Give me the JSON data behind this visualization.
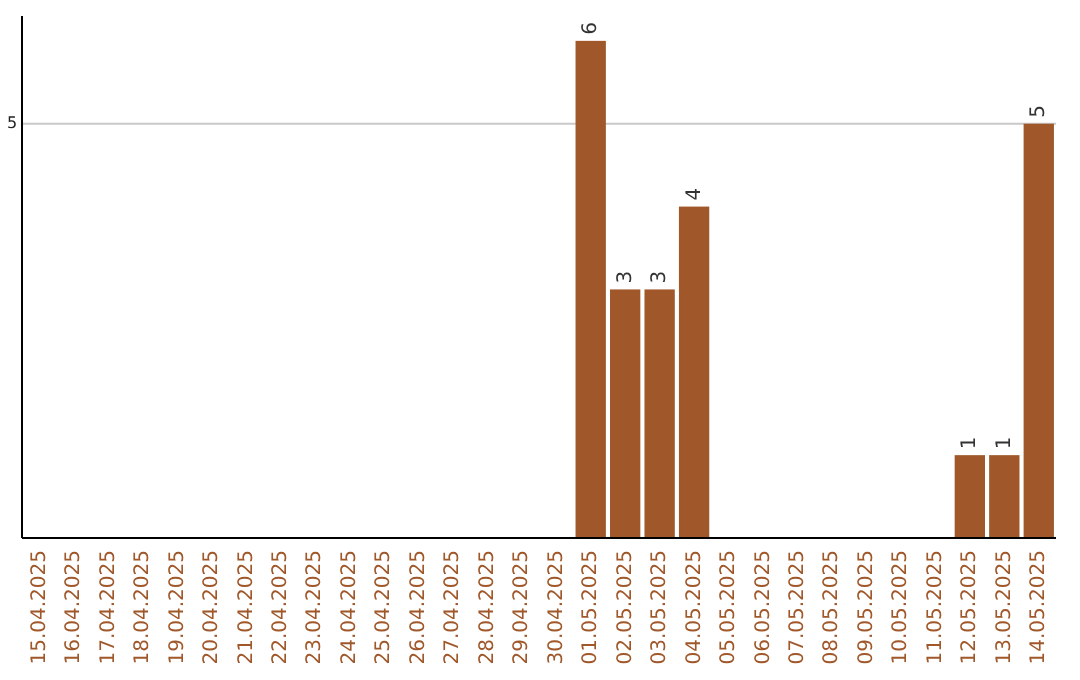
{
  "chart_data": {
    "type": "bar",
    "categories": [
      "15.04.2025",
      "16.04.2025",
      "17.04.2025",
      "18.04.2025",
      "19.04.2025",
      "20.04.2025",
      "21.04.2025",
      "22.04.2025",
      "23.04.2025",
      "24.04.2025",
      "25.04.2025",
      "26.04.2025",
      "27.04.2025",
      "28.04.2025",
      "29.04.2025",
      "30.04.2025",
      "01.05.2025",
      "02.05.2025",
      "03.05.2025",
      "04.05.2025",
      "05.05.2025",
      "06.05.2025",
      "07.05.2025",
      "08.05.2025",
      "09.05.2025",
      "10.05.2025",
      "11.05.2025",
      "12.05.2025",
      "13.05.2025",
      "14.05.2025"
    ],
    "values": [
      null,
      null,
      null,
      null,
      null,
      null,
      null,
      null,
      null,
      null,
      null,
      null,
      null,
      null,
      null,
      null,
      6,
      3,
      3,
      4,
      null,
      null,
      null,
      null,
      null,
      null,
      null,
      1,
      1,
      5
    ],
    "value_labels": [
      null,
      null,
      null,
      null,
      null,
      null,
      null,
      null,
      null,
      null,
      null,
      null,
      null,
      null,
      null,
      null,
      "6",
      "3",
      "3",
      "4",
      null,
      null,
      null,
      null,
      null,
      null,
      null,
      "1",
      "1",
      "5"
    ],
    "color": "#a0582a",
    "ylim": [
      0,
      6.3
    ],
    "yticks": [
      5
    ],
    "grid": "y"
  }
}
